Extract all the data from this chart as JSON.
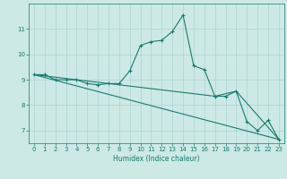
{
  "xlabel": "Humidex (Indice chaleur)",
  "bg_color": "#cce9e5",
  "grid_color": "#aad4cf",
  "line_color": "#1a7a6e",
  "xlim_min": -0.5,
  "xlim_max": 23.5,
  "ylim_min": 6.5,
  "ylim_max": 12.0,
  "xticks": [
    0,
    1,
    2,
    3,
    4,
    5,
    6,
    7,
    8,
    9,
    10,
    11,
    12,
    13,
    14,
    15,
    16,
    17,
    18,
    19,
    20,
    21,
    22,
    23
  ],
  "yticks": [
    7,
    8,
    9,
    10,
    11
  ],
  "line1_x": [
    0,
    1,
    2,
    3,
    4,
    5,
    6,
    7,
    8,
    9,
    10,
    11,
    12,
    13,
    14,
    15,
    16,
    17,
    18,
    19,
    20,
    21,
    22,
    23
  ],
  "line1_y": [
    9.2,
    9.2,
    9.0,
    9.0,
    9.0,
    8.85,
    8.8,
    8.85,
    8.85,
    9.35,
    10.35,
    10.5,
    10.55,
    10.9,
    11.55,
    9.55,
    9.4,
    8.35,
    8.35,
    8.55,
    7.35,
    7.0,
    7.4,
    6.65
  ],
  "line2_x": [
    0,
    23
  ],
  "line2_y": [
    9.2,
    6.65
  ],
  "line3_x": [
    0,
    17,
    19,
    23
  ],
  "line3_y": [
    9.2,
    8.35,
    8.55,
    6.65
  ]
}
